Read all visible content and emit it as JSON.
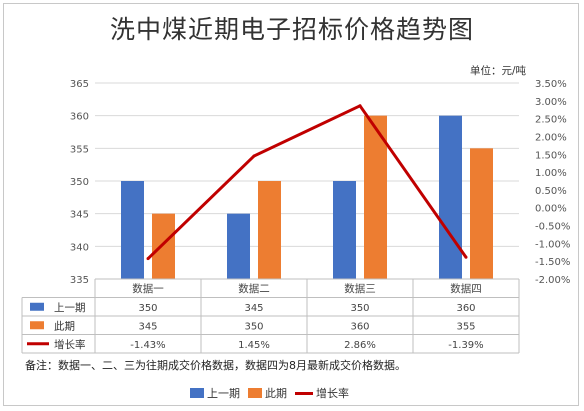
{
  "title": "洗中煤近期电子招标价格趋势图",
  "unit": "单位：元/吨",
  "note": "备注：数据一、二、三为往期成交价格数据，数据四为8月最新成交价格数据。",
  "colors": {
    "prev": "#4472c4",
    "curr": "#ed7d31",
    "rate": "#c00000"
  },
  "chart_data": {
    "type": "bar",
    "categories": [
      "数据一",
      "数据二",
      "数据三",
      "数据四"
    ],
    "series": [
      {
        "name": "上一期",
        "type": "bar",
        "axis": "left",
        "values": [
          350,
          345,
          350,
          360
        ],
        "labels": [
          "350",
          "345",
          "350",
          "360"
        ]
      },
      {
        "name": "此期",
        "type": "bar",
        "axis": "left",
        "values": [
          345,
          350,
          360,
          355
        ],
        "labels": [
          "345",
          "350",
          "360",
          "355"
        ]
      },
      {
        "name": "增长率",
        "type": "line",
        "axis": "right",
        "values": [
          -1.43,
          1.45,
          2.86,
          -1.39
        ],
        "labels": [
          "-1.43%",
          "1.45%",
          "2.86%",
          "-1.39%"
        ]
      }
    ],
    "ylim_left": [
      335,
      365
    ],
    "yticks_left": [
      "335",
      "340",
      "345",
      "350",
      "355",
      "360",
      "365"
    ],
    "ylim_right": [
      -2.0,
      3.5
    ],
    "yticks_right": [
      "-2.00%",
      "-1.50%",
      "-1.00%",
      "-0.50%",
      "0.00%",
      "0.50%",
      "1.00%",
      "1.50%",
      "2.00%",
      "2.50%",
      "3.00%",
      "3.50%"
    ],
    "grid": true,
    "legend": "bottom",
    "data_table": true
  }
}
